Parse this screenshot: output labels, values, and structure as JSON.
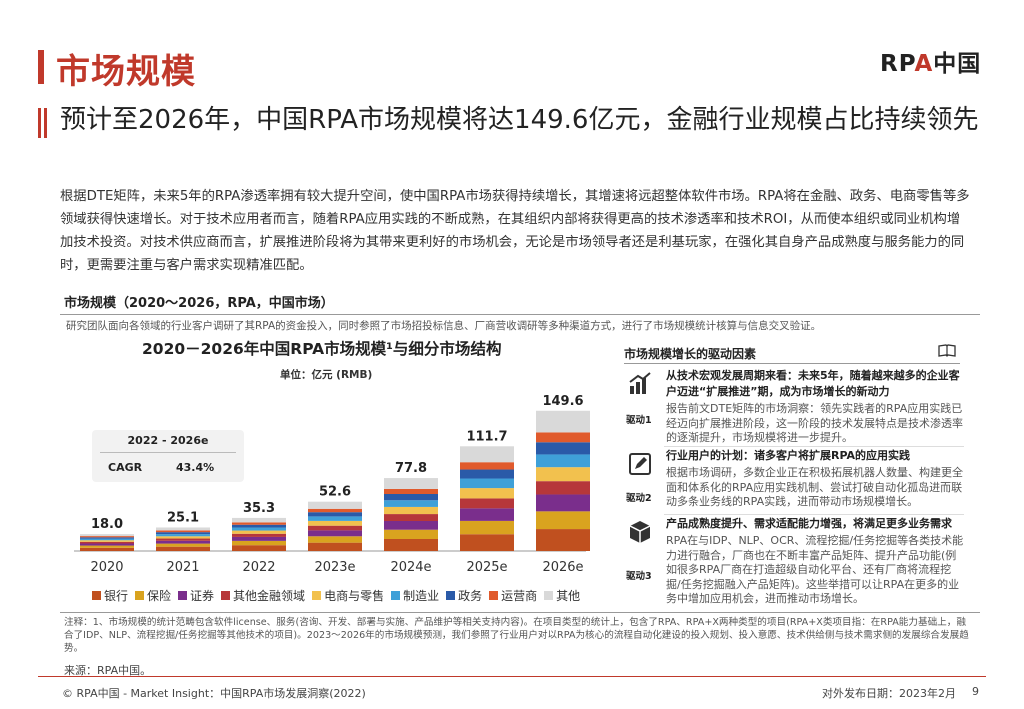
{
  "header": {
    "title": "市场规模",
    "logo_prefix": "RP",
    "logo_mid": "A",
    "logo_suffix": "中国"
  },
  "subtitle": "预计至2026年，中国RPA市场规模将达149.6亿元，金融行业规模占比持续领先",
  "paragraph": "根据DTE矩阵，未来5年的RPA渗透率拥有较大提升空间，使中国RPA市场获得持续增长，其增速将远超整体软件市场。RPA将在金融、政务、电商零售等多领域获得快速增长。对于技术应用者而言，随着RPA应用实践的不断成熟，在其组织内部将获得更高的技术渗透率和技术ROI，从而使本组织或同业机构增加技术投资。对技术供应商而言，扩展推进阶段将为其带来更利好的市场机会，无论是市场领导者还是利基玩家，在强化其自身产品成熟度与服务能力的同时，更需要注重与客户需求实现精准匹配。",
  "section": {
    "heading": "市场规模（2020～2026，RPA，中国市场）",
    "description": "研究团队面向各领域的行业客户调研了其RPA的资金投入，同时参照了市场招投标信息、厂商营收调研等多种渠道方式，进行了市场规模统计核算与信息交叉验证。"
  },
  "chart_data": {
    "type": "bar",
    "stacked": true,
    "title": "2020－2026年中国RPA市场规模¹与细分市场结构",
    "unit": "单位：亿元 (RMB)",
    "categories": [
      "2020",
      "2021",
      "2022",
      "2023e",
      "2024e",
      "2025e",
      "2026e"
    ],
    "totals": [
      18.0,
      25.1,
      35.3,
      52.6,
      77.8,
      111.7,
      149.6
    ],
    "total_labels": [
      "18.0",
      "25.1",
      "35.3",
      "52.6",
      "77.8",
      "111.7",
      "149.6"
    ],
    "ylim": [
      0,
      160
    ],
    "series": [
      {
        "name": "银行",
        "color": "#c0501f",
        "values": [
          3.4,
          4.6,
          6.2,
          8.9,
          12.8,
          17.9,
          23.4
        ]
      },
      {
        "name": "保险",
        "color": "#d9a31f",
        "values": [
          2.4,
          3.3,
          4.6,
          6.8,
          9.9,
          14.2,
          18.9
        ]
      },
      {
        "name": "证券",
        "color": "#7a2e8c",
        "values": [
          2.2,
          3.0,
          4.2,
          6.3,
          9.3,
          13.4,
          18.0
        ]
      },
      {
        "name": "其他金融领域",
        "color": "#b6373a",
        "values": [
          1.8,
          2.4,
          3.4,
          5.0,
          7.4,
          10.6,
          14.2
        ]
      },
      {
        "name": "电商与零售",
        "color": "#f2c14e",
        "values": [
          1.7,
          2.4,
          3.4,
          5.1,
          7.6,
          11.0,
          14.9
        ]
      },
      {
        "name": "制造业",
        "color": "#3fa0d8",
        "values": [
          1.6,
          2.3,
          3.2,
          4.8,
          7.1,
          10.2,
          13.6
        ]
      },
      {
        "name": "政务",
        "color": "#2a5aa8",
        "values": [
          1.5,
          2.1,
          3.0,
          4.5,
          6.7,
          9.6,
          13.0
        ]
      },
      {
        "name": "运营商",
        "color": "#e05a2c",
        "values": [
          1.3,
          1.8,
          2.5,
          3.6,
          5.4,
          7.8,
          10.5
        ]
      },
      {
        "name": "其他",
        "color": "#d9d9d9",
        "values": [
          2.1,
          3.2,
          4.8,
          7.6,
          11.6,
          17.0,
          23.1
        ]
      }
    ],
    "cagr": {
      "period": "2022 - 2026e",
      "label": "CAGR",
      "value": "43.4%"
    }
  },
  "drivers": {
    "heading": "市场规模增长的驱动因素",
    "items": [
      {
        "label": "驱动1",
        "title": "从技术宏观发展周期来看：未来5年，随着越来越多的企业客户迈进“扩展推进”期，成为市场增长的新动力",
        "body": "报告前文DTE矩阵的市场洞察：领先实践者的RPA应用实践已经迈向扩展推进阶段，这一阶段的技术发展特点是技术渗透率的逐渐提升，市场规模将进一步提升。"
      },
      {
        "label": "驱动2",
        "title": "行业用户的计划：诸多客户将扩展RPA的应用实践",
        "body": "根据市场调研，多数企业正在积极拓展机器人数量、构建更全面和体系化的RPA应用实践机制、尝试打破自动化孤岛进而联动多条业务线的RPA实践，进而带动市场规模增长。"
      },
      {
        "label": "驱动3",
        "title": "产品成熟度提升、需求适配能力增强，将满足更多业务需求",
        "body": "RPA在与IDP、NLP、OCR、流程挖掘/任务挖掘等各类技术能力进行融合，厂商也在不断丰富产品矩阵、提升产品功能(例如很多RPA厂商在打造超级自动化平台、还有厂商将流程挖掘/任务挖掘融入产品矩阵)。这些举措可以让RPA在更多的业务中增加应用机会，进而推动市场增长。"
      }
    ]
  },
  "notes": "注释：1、市场规模的统计范畴包含软件license、服务(咨询、开发、部署与实施、产品维护等相关支持内容)。在项目类型的统计上，包含了RPA、RPA+X两种类型的项目(RPA+X类项目指：在RPA能力基础上，融合了IDP、NLP、流程挖掘/任务挖掘等其他技术的项目)。2023～2026年的市场规模预测，我们参照了行业用户对以RPA为核心的流程自动化建设的投入规划、投入意愿、技术供给侧与技术需求侧的发展综合发展趋势。",
  "source": "来源：RPA中国。",
  "footer": {
    "left": "© RPA中国 - Market Insight：中国RPA市场发展洞察(2022)",
    "date": "对外发布日期：2023年2月",
    "page": "9"
  }
}
